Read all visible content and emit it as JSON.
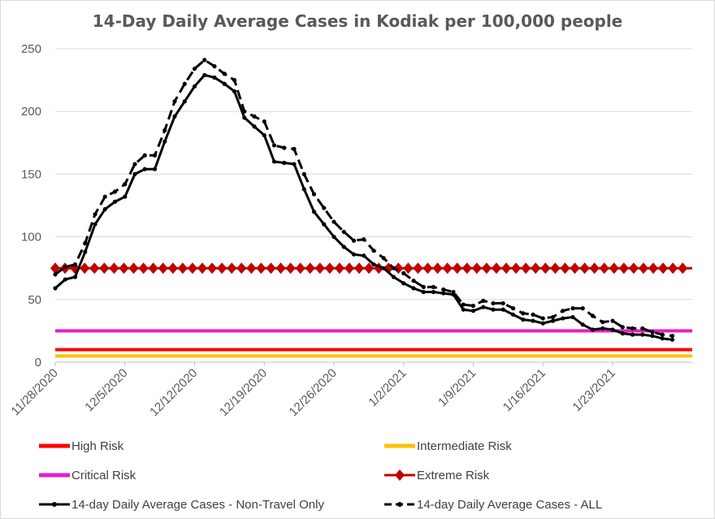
{
  "chart_data": {
    "type": "line",
    "title": "14-Day Daily Average Cases in Kodiak per 100,000 people",
    "xlabel": "",
    "ylabel": "",
    "ylim": [
      0,
      250
    ],
    "yticks": [
      0,
      50,
      100,
      150,
      200,
      250
    ],
    "grid": "horizontal",
    "legend_position": "bottom",
    "x_start": "11/28/2020",
    "x_end": "1/29/2021",
    "xticks": [
      {
        "label": "11/28/2020",
        "day": 0
      },
      {
        "label": "12/5/2020",
        "day": 7
      },
      {
        "label": "12/12/2020",
        "day": 14
      },
      {
        "label": "12/19/2020",
        "day": 21
      },
      {
        "label": "12/26/2020",
        "day": 28
      },
      {
        "label": "1/2/2021",
        "day": 35
      },
      {
        "label": "1/9/2021",
        "day": 42
      },
      {
        "label": "1/16/2021",
        "day": 49
      },
      {
        "label": "1/23/2021",
        "day": 56
      }
    ],
    "series": [
      {
        "name": "High Risk",
        "color": "#ff0000",
        "style": "solid",
        "value": 10
      },
      {
        "name": "Intermediate Risk",
        "color": "#ffc000",
        "style": "solid",
        "value": 5
      },
      {
        "name": "Critical Risk",
        "color": "#e61ec9",
        "style": "solid",
        "value": 25
      },
      {
        "name": "Extreme Risk",
        "color": "#c00000",
        "style": "diamond",
        "value": 75
      },
      {
        "name": "14-day Daily Average Cases - Non-Travel Only",
        "color": "#000000",
        "style": "solid-dot",
        "values": [
          59,
          66,
          68,
          88,
          110,
          122,
          128,
          132,
          150,
          154,
          154,
          176,
          196,
          208,
          220,
          229,
          227,
          222,
          216,
          195,
          188,
          181,
          160,
          159,
          158,
          138,
          120,
          110,
          100,
          92,
          86,
          85,
          78,
          75,
          68,
          63,
          59,
          56,
          56,
          55,
          54,
          42,
          41,
          44,
          42,
          42,
          38,
          34,
          33,
          31,
          33,
          35,
          36,
          30,
          26,
          27,
          26,
          23,
          22,
          22,
          21,
          19,
          18
        ],
        "x_start_day": 0
      },
      {
        "name": "14-day Daily Average Cases - ALL",
        "color": "#000000",
        "style": "dashed-dot",
        "values": [
          70,
          76,
          78,
          95,
          118,
          132,
          136,
          142,
          158,
          165,
          165,
          185,
          208,
          222,
          234,
          241,
          236,
          230,
          225,
          200,
          196,
          192,
          173,
          171,
          170,
          150,
          134,
          123,
          112,
          104,
          97,
          98,
          89,
          83,
          75,
          71,
          65,
          60,
          60,
          58,
          56,
          46,
          45,
          49,
          47,
          47,
          43,
          39,
          38,
          35,
          36,
          41,
          43,
          43,
          37,
          32,
          33,
          28,
          27,
          27,
          24,
          22,
          21
        ],
        "x_start_day": 0
      }
    ]
  }
}
